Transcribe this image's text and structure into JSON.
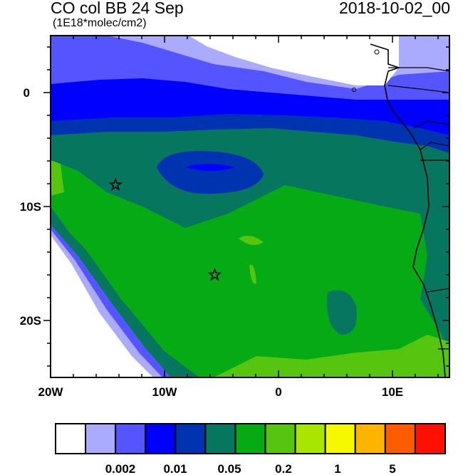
{
  "header": {
    "title": "CO col BB 24 Sep",
    "date": "2018-10-02_00",
    "units": "(1E18*molec/cm2)"
  },
  "map": {
    "x_ticks": [
      "20W",
      "10W",
      "0",
      "10E"
    ],
    "y_ticks": [
      "0",
      "10S",
      "20S"
    ],
    "lon_range": [
      -20,
      15
    ],
    "lat_range": [
      -25,
      5
    ],
    "markers": [
      {
        "icon": "star-icon",
        "lon": -14.3,
        "lat": -8.1
      },
      {
        "icon": "star-icon",
        "lon": -5.6,
        "lat": -16.0
      }
    ]
  },
  "colorbar": {
    "colors": [
      "#ffffff",
      "#aaaaff",
      "#5555ff",
      "#0000ff",
      "#0033b0",
      "#06765f",
      "#06aa14",
      "#55c50f",
      "#a8e500",
      "#f5f800",
      "#ffb400",
      "#ff5b00",
      "#ff1000"
    ],
    "labels": [
      "0.002",
      "0.01",
      "0.05",
      "0.2",
      "1",
      "5"
    ]
  }
}
